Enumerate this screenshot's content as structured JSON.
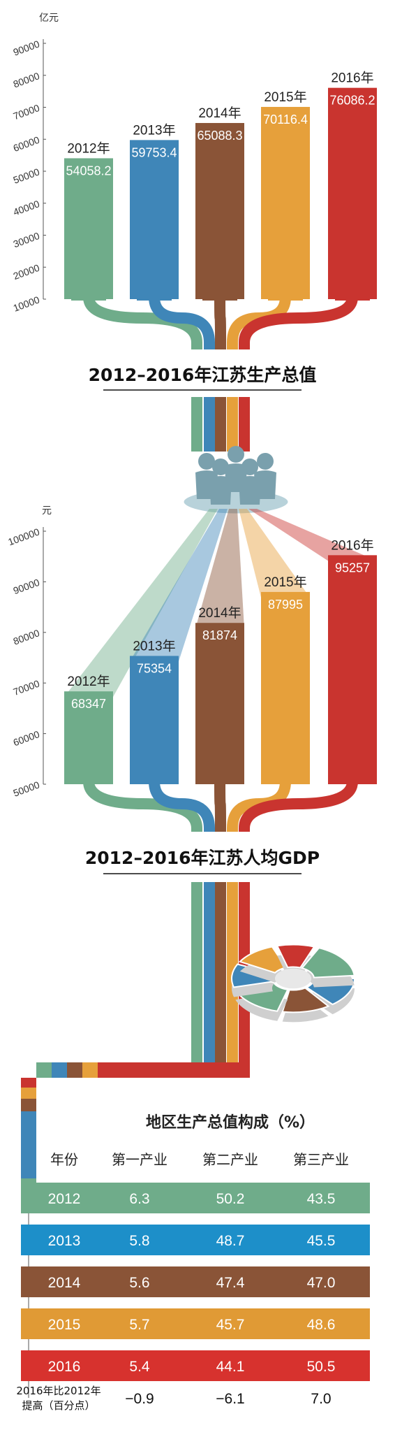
{
  "colors": [
    "#6fac8a",
    "#3f86b8",
    "#8a5437",
    "#e6a03b",
    "#c9342f"
  ],
  "row_colors": [
    "#6fac8a",
    "#1d8fc9",
    "#8a5437",
    "#e09a35",
    "#d7322e"
  ],
  "icon_names": [
    "people-group-icon",
    "pie-3d-icon"
  ],
  "chart_data": [
    {
      "type": "bar",
      "title": "2012–2016年江苏生产总值",
      "unit": "亿元",
      "ylim": [
        10000,
        90000
      ],
      "yticks": [
        "90000",
        "80000",
        "70000",
        "60000",
        "50000",
        "40000",
        "30000",
        "20000",
        "10000"
      ],
      "categories": [
        "2012年",
        "2013年",
        "2014年",
        "2015年",
        "2016年"
      ],
      "values": [
        54058.2,
        59753.4,
        65088.3,
        70116.4,
        76086.2
      ],
      "value_labels": [
        "54058.2",
        "59753.4",
        "65088.3",
        "70116.4",
        "76086.2"
      ]
    },
    {
      "type": "bar",
      "title": "2012–2016年江苏人均GDP",
      "unit": "元",
      "ylim": [
        50000,
        100000
      ],
      "yticks": [
        "100000",
        "90000",
        "80000",
        "70000",
        "60000",
        "50000"
      ],
      "categories": [
        "2012年",
        "2013年",
        "2014年",
        "2015年",
        "2016年"
      ],
      "values": [
        68347,
        75354,
        81874,
        87995,
        95257
      ],
      "value_labels": [
        "68347",
        "75354",
        "81874",
        "87995",
        "95257"
      ]
    },
    {
      "type": "table",
      "title": "地区生产总值构成（%）",
      "columns": [
        "年份",
        "第一产业",
        "第二产业",
        "第三产业"
      ],
      "rows": [
        [
          "2012",
          "6.3",
          "50.2",
          "43.5"
        ],
        [
          "2013",
          "5.8",
          "48.7",
          "45.5"
        ],
        [
          "2014",
          "5.6",
          "47.4",
          "47.0"
        ],
        [
          "2015",
          "5.7",
          "45.7",
          "48.6"
        ],
        [
          "2016",
          "5.4",
          "44.1",
          "50.5"
        ]
      ],
      "footer_label": [
        "2016年比2012年",
        "提高（百分点）"
      ],
      "footer_values": [
        "−0.9",
        "−6.1",
        "7.0"
      ]
    }
  ]
}
